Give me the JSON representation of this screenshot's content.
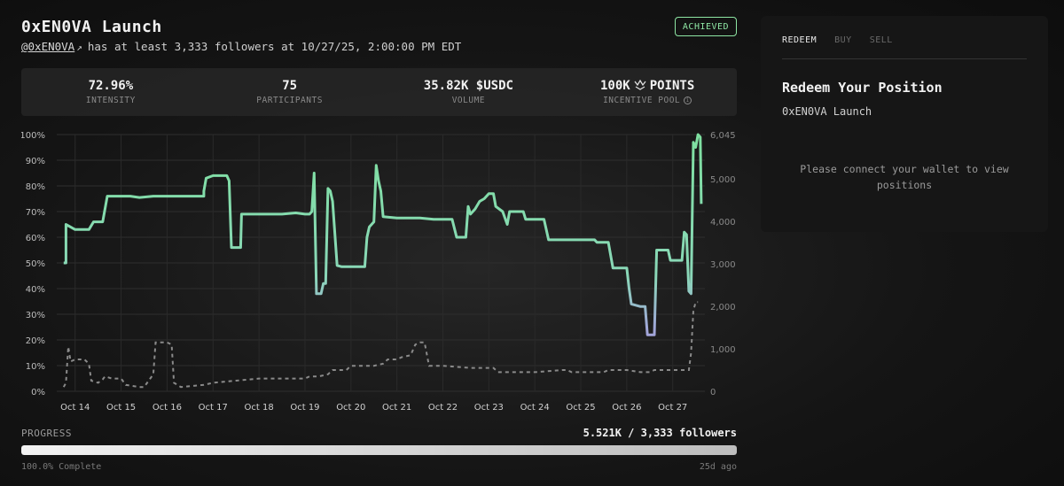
{
  "header": {
    "title": "0xEN0VA Launch",
    "handle": "@0xEN0VA",
    "handle_arrow": "↗",
    "condition": "has at least 3,333 followers at 10/27/25, 2:00:00 PM EDT",
    "badge": "ACHIEVED"
  },
  "stats": [
    {
      "value": "72.96%",
      "label": "INTENSITY"
    },
    {
      "value": "75",
      "label": "PARTICIPANTS"
    },
    {
      "value": "35.82K $USDC",
      "label": "VOLUME"
    },
    {
      "value": "100K",
      "value_suffix": "POINTS",
      "label": "INCENTIVE POOL",
      "icon": "points-icon",
      "label_icon": "info-icon"
    }
  ],
  "chart_data": {
    "type": "line",
    "x_tick_labels": [
      "Oct 14",
      "Oct 15",
      "Oct 16",
      "Oct 17",
      "Oct 18",
      "Oct 19",
      "Oct 20",
      "Oct 21",
      "Oct 22",
      "Oct 23",
      "Oct 24",
      "Oct 25",
      "Oct 26",
      "Oct 27"
    ],
    "y_left_ticks": [
      "0%",
      "10%",
      "20%",
      "30%",
      "40%",
      "50%",
      "60%",
      "70%",
      "80%",
      "90%",
      "100%"
    ],
    "y_right_ticks": [
      "0",
      "1,000",
      "2,000",
      "3,000",
      "4,000",
      "5,000",
      "6,045"
    ],
    "ylim_left": [
      0,
      100
    ],
    "ylim_right": [
      0,
      6045
    ],
    "grid": true,
    "series": [
      {
        "axis": "left",
        "style": "solid",
        "color_high": "#7ee0a0",
        "color_low": "#b090e0",
        "points": [
          [
            13.75,
            50
          ],
          [
            13.8,
            50
          ],
          [
            13.8,
            65
          ],
          [
            13.9,
            64
          ],
          [
            14.0,
            63
          ],
          [
            14.3,
            63
          ],
          [
            14.4,
            66
          ],
          [
            14.6,
            66
          ],
          [
            14.7,
            76
          ],
          [
            15.0,
            76
          ],
          [
            15.2,
            76
          ],
          [
            15.4,
            75.5
          ],
          [
            15.7,
            76
          ],
          [
            16.0,
            76
          ],
          [
            16.5,
            76
          ],
          [
            16.8,
            76
          ],
          [
            16.8,
            78
          ],
          [
            16.85,
            83
          ],
          [
            17.0,
            84
          ],
          [
            17.3,
            84
          ],
          [
            17.35,
            82
          ],
          [
            17.4,
            56
          ],
          [
            17.6,
            56
          ],
          [
            17.62,
            69
          ],
          [
            18.0,
            69
          ],
          [
            18.5,
            69
          ],
          [
            18.8,
            69.5
          ],
          [
            19.0,
            69
          ],
          [
            19.1,
            69
          ],
          [
            19.15,
            70
          ],
          [
            19.2,
            85
          ],
          [
            19.25,
            38
          ],
          [
            19.35,
            38
          ],
          [
            19.4,
            42
          ],
          [
            19.45,
            42
          ],
          [
            19.5,
            79
          ],
          [
            19.55,
            78
          ],
          [
            19.6,
            74
          ],
          [
            19.7,
            49
          ],
          [
            19.8,
            48.5
          ],
          [
            20.0,
            48.5
          ],
          [
            20.3,
            48.5
          ],
          [
            20.35,
            60
          ],
          [
            20.4,
            64
          ],
          [
            20.5,
            66
          ],
          [
            20.55,
            88
          ],
          [
            20.6,
            82
          ],
          [
            20.65,
            78
          ],
          [
            20.7,
            68
          ],
          [
            21.0,
            67.5
          ],
          [
            21.5,
            67.5
          ],
          [
            21.8,
            67
          ],
          [
            22.0,
            67
          ],
          [
            22.2,
            67
          ],
          [
            22.3,
            60
          ],
          [
            22.5,
            60
          ],
          [
            22.55,
            72
          ],
          [
            22.6,
            69
          ],
          [
            22.7,
            71
          ],
          [
            22.8,
            74
          ],
          [
            22.9,
            75
          ],
          [
            23.0,
            77
          ],
          [
            23.1,
            77
          ],
          [
            23.15,
            72
          ],
          [
            23.3,
            70
          ],
          [
            23.4,
            65
          ],
          [
            23.45,
            70
          ],
          [
            23.6,
            70
          ],
          [
            23.75,
            70
          ],
          [
            23.8,
            67
          ],
          [
            24.0,
            67
          ],
          [
            24.2,
            67
          ],
          [
            24.3,
            59
          ],
          [
            24.6,
            59
          ],
          [
            24.8,
            59
          ],
          [
            25.0,
            59
          ],
          [
            25.3,
            59
          ],
          [
            25.35,
            58
          ],
          [
            25.6,
            58
          ],
          [
            25.7,
            48
          ],
          [
            26.0,
            48
          ],
          [
            26.05,
            40
          ],
          [
            26.1,
            34
          ],
          [
            26.3,
            33
          ],
          [
            26.4,
            33
          ],
          [
            26.45,
            22
          ],
          [
            26.6,
            22
          ],
          [
            26.65,
            55
          ],
          [
            26.75,
            55
          ],
          [
            26.9,
            55
          ],
          [
            26.95,
            51
          ],
          [
            27.1,
            51
          ],
          [
            27.2,
            51
          ],
          [
            27.25,
            62
          ],
          [
            27.3,
            61
          ],
          [
            27.35,
            39
          ],
          [
            27.4,
            38
          ],
          [
            27.45,
            97
          ],
          [
            27.5,
            95
          ],
          [
            27.55,
            100
          ],
          [
            27.6,
            99
          ],
          [
            27.62,
            73
          ]
        ]
      },
      {
        "axis": "right",
        "style": "dashed",
        "color": "#8a8a8a",
        "points": [
          [
            13.75,
            100
          ],
          [
            13.8,
            200
          ],
          [
            13.85,
            1050
          ],
          [
            13.9,
            700
          ],
          [
            14.0,
            750
          ],
          [
            14.2,
            750
          ],
          [
            14.3,
            650
          ],
          [
            14.35,
            250
          ],
          [
            14.5,
            200
          ],
          [
            14.6,
            280
          ],
          [
            14.65,
            350
          ],
          [
            14.8,
            300
          ],
          [
            15.0,
            300
          ],
          [
            15.1,
            150
          ],
          [
            15.4,
            100
          ],
          [
            15.5,
            100
          ],
          [
            15.7,
            400
          ],
          [
            15.75,
            1150
          ],
          [
            16.0,
            1150
          ],
          [
            16.1,
            1100
          ],
          [
            16.15,
            200
          ],
          [
            16.3,
            100
          ],
          [
            16.8,
            150
          ],
          [
            17.0,
            200
          ],
          [
            17.5,
            250
          ],
          [
            18.0,
            300
          ],
          [
            18.5,
            300
          ],
          [
            19.0,
            300
          ],
          [
            19.1,
            350
          ],
          [
            19.2,
            350
          ],
          [
            19.3,
            350
          ],
          [
            19.5,
            400
          ],
          [
            19.6,
            500
          ],
          [
            19.9,
            500
          ],
          [
            20.0,
            600
          ],
          [
            20.5,
            600
          ],
          [
            20.7,
            650
          ],
          [
            20.8,
            750
          ],
          [
            21.0,
            750
          ],
          [
            21.1,
            800
          ],
          [
            21.3,
            850
          ],
          [
            21.4,
            1100
          ],
          [
            21.5,
            1150
          ],
          [
            21.6,
            1150
          ],
          [
            21.7,
            600
          ],
          [
            22.0,
            600
          ],
          [
            22.6,
            550
          ],
          [
            22.9,
            550
          ],
          [
            23.0,
            550
          ],
          [
            23.1,
            550
          ],
          [
            23.2,
            450
          ],
          [
            23.3,
            450
          ],
          [
            23.5,
            450
          ],
          [
            24.0,
            450
          ],
          [
            24.6,
            500
          ],
          [
            24.7,
            500
          ],
          [
            24.8,
            450
          ],
          [
            25.0,
            450
          ],
          [
            25.5,
            450
          ],
          [
            25.6,
            500
          ],
          [
            26.0,
            500
          ],
          [
            26.3,
            450
          ],
          [
            26.5,
            450
          ],
          [
            26.6,
            500
          ],
          [
            26.8,
            500
          ],
          [
            27.0,
            500
          ],
          [
            27.2,
            500
          ],
          [
            27.3,
            500
          ],
          [
            27.35,
            500
          ],
          [
            27.4,
            900
          ],
          [
            27.45,
            1900
          ],
          [
            27.5,
            2100
          ],
          [
            27.55,
            2100
          ]
        ]
      }
    ],
    "x_domain": [
      13.6,
      27.7
    ]
  },
  "progress": {
    "label": "PROGRESS",
    "count": "5.521K / 3,333 followers",
    "fraction": 1.0,
    "complete_text": "100.0% Complete",
    "ago": "25d ago"
  },
  "panel": {
    "tabs": [
      "REDEEM",
      "BUY",
      "SELL"
    ],
    "active_tab": "REDEEM",
    "title": "Redeem Your Position",
    "subtitle": "0xEN0VA Launch",
    "message": "Please connect your wallet to view positions"
  }
}
